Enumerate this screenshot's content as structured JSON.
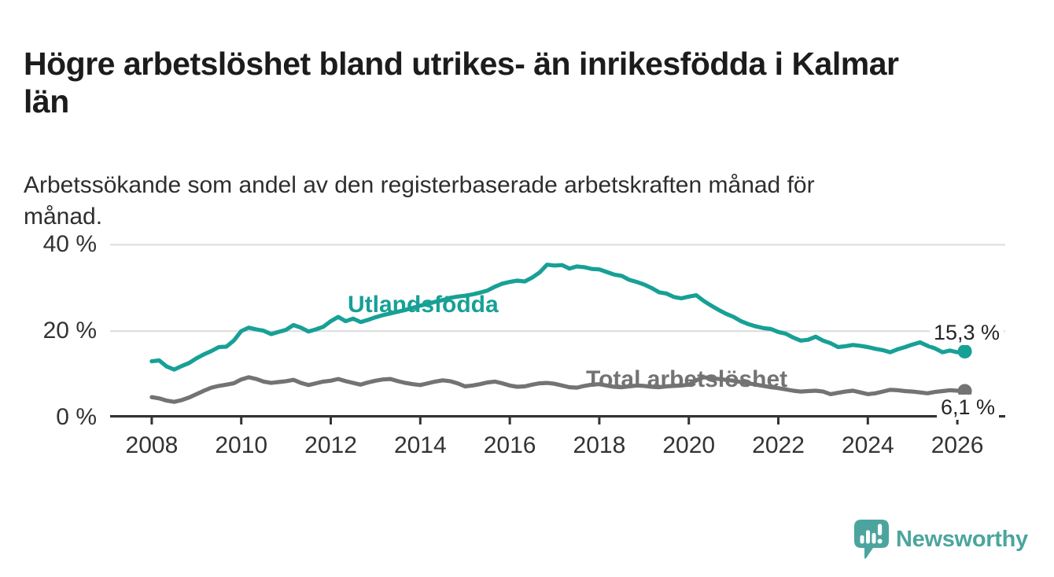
{
  "header": {
    "title": "Högre arbetslöshet bland utrikes- än inrikesfödda i Kalmar län",
    "subtitle": "Arbetssökande som andel av den registerbaserade arbetskraften månad för månad."
  },
  "chart_data": {
    "type": "line",
    "title": "Högre arbetslöshet bland utrikes- än inrikesfödda i Kalmar län",
    "subtitle": "Arbetssökande som andel av den registerbaserade arbetskraften månad för månad.",
    "unit": "%",
    "grid": "horizontal",
    "xlim": [
      2007.07,
      2027.07
    ],
    "ylim": [
      0,
      43
    ],
    "x_axis": {
      "ticks": [
        2008,
        2010,
        2012,
        2014,
        2016,
        2018,
        2020,
        2022,
        2024,
        2026
      ],
      "labels": [
        "2008",
        "2010",
        "2012",
        "2014",
        "2016",
        "2018",
        "2020",
        "2022",
        "2024",
        "2026"
      ]
    },
    "y_axis": {
      "ticks": [
        0,
        20,
        40
      ],
      "labels": [
        "0 %",
        "20 %",
        "40 %"
      ]
    },
    "series": [
      {
        "name": "Utlandsfödda",
        "color": "#17a096",
        "x_start": 2008.0,
        "x_step_years": 0.16667,
        "end_value": 15.3,
        "end_label": "15,3 %",
        "values": [
          13.0,
          13.2,
          11.8,
          11.1,
          11.9,
          12.6,
          13.7,
          14.6,
          15.4,
          16.3,
          16.4,
          17.8,
          20.0,
          20.8,
          20.4,
          20.1,
          19.3,
          19.8,
          20.3,
          21.4,
          20.8,
          19.9,
          20.4,
          21.0,
          22.3,
          23.3,
          22.3,
          22.9,
          22.1,
          22.6,
          23.2,
          23.7,
          24.1,
          24.5,
          24.9,
          25.4,
          25.9,
          26.3,
          26.8,
          27.2,
          27.7,
          28.0,
          28.2,
          28.5,
          28.9,
          29.4,
          30.3,
          31.0,
          31.4,
          31.7,
          31.5,
          32.4,
          33.6,
          35.4,
          35.2,
          35.3,
          34.5,
          35.0,
          34.8,
          34.4,
          34.3,
          33.7,
          33.1,
          32.8,
          31.9,
          31.4,
          30.8,
          30.0,
          29.0,
          28.7,
          27.9,
          27.6,
          28.0,
          28.3,
          27.0,
          25.9,
          24.9,
          24.0,
          23.3,
          22.3,
          21.6,
          21.1,
          20.7,
          20.5,
          19.8,
          19.4,
          18.5,
          17.8,
          18.0,
          18.7,
          17.8,
          17.2,
          16.3,
          16.5,
          16.8,
          16.6,
          16.3,
          15.9,
          15.6,
          15.1,
          15.8,
          16.3,
          16.9,
          17.4,
          16.6,
          16.0,
          15.1,
          15.5,
          15.1,
          15.3
        ]
      },
      {
        "name": "Total arbetslöshet",
        "color": "#737373",
        "x_start": 2008.0,
        "x_step_years": 0.16667,
        "end_value": 6.1,
        "end_label": "6,1 %",
        "values": [
          4.7,
          4.4,
          3.9,
          3.6,
          4.0,
          4.6,
          5.4,
          6.2,
          6.9,
          7.3,
          7.6,
          7.9,
          8.8,
          9.3,
          8.9,
          8.3,
          8.0,
          8.2,
          8.4,
          8.7,
          8.0,
          7.5,
          7.9,
          8.3,
          8.5,
          8.9,
          8.4,
          8.0,
          7.6,
          8.1,
          8.5,
          8.8,
          8.9,
          8.4,
          8.0,
          7.7,
          7.5,
          7.9,
          8.3,
          8.6,
          8.4,
          7.9,
          7.2,
          7.4,
          7.7,
          8.1,
          8.3,
          7.9,
          7.4,
          7.1,
          7.2,
          7.6,
          7.9,
          8.0,
          7.8,
          7.4,
          7.0,
          6.9,
          7.3,
          7.6,
          7.7,
          7.4,
          7.1,
          7.0,
          7.2,
          7.4,
          7.3,
          7.1,
          7.0,
          7.2,
          7.3,
          7.4,
          7.6,
          8.6,
          9.3,
          9.1,
          8.9,
          8.7,
          8.5,
          8.2,
          7.9,
          7.6,
          7.3,
          7.0,
          6.8,
          6.5,
          6.2,
          6.0,
          6.1,
          6.2,
          6.0,
          5.4,
          5.7,
          6.0,
          6.2,
          5.8,
          5.4,
          5.6,
          6.0,
          6.4,
          6.3,
          6.1,
          6.0,
          5.8,
          5.6,
          5.9,
          6.1,
          6.3,
          6.2,
          6.1
        ]
      }
    ],
    "colors": {
      "accent_teal": "#17a096",
      "line_gray": "#737373",
      "gridline": "#dcdcdc",
      "axis": "#333333",
      "text_dark": "#1c1c1c"
    }
  },
  "footer": {
    "brand": "Newsworthy"
  }
}
